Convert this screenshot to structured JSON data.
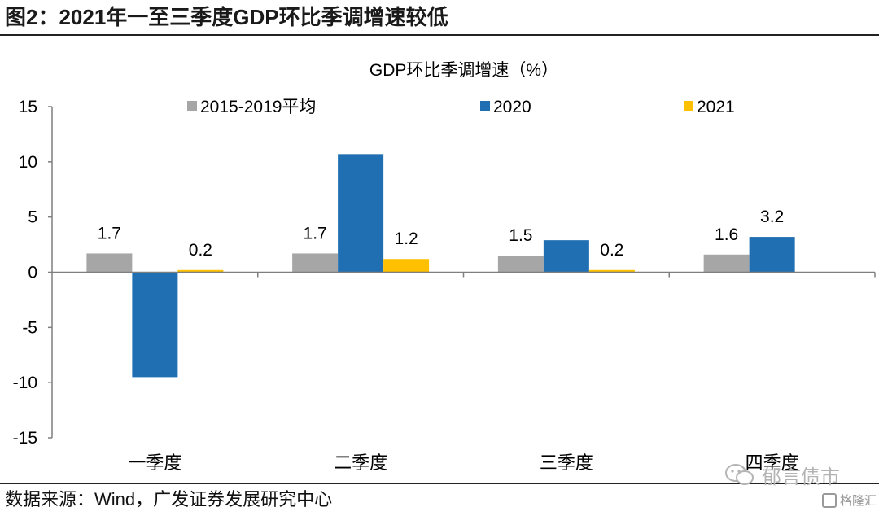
{
  "figure": {
    "title": "图2：2021年一至三季度GDP环比季调增速较低",
    "source": "数据来源：Wind，广发证券发展研究中心",
    "watermark": "郁言债市",
    "watermark2": "格隆汇"
  },
  "chart_data": {
    "type": "bar",
    "title": "GDP环比季调增速（%）",
    "xlabel": "",
    "ylabel": "",
    "categories": [
      "一季度",
      "二季度",
      "三季度",
      "四季度"
    ],
    "ylim": [
      -15,
      15
    ],
    "yticks": [
      15,
      10,
      5,
      0,
      -5,
      -10,
      -15
    ],
    "legend_position": "top",
    "grid": false,
    "series": [
      {
        "name": "2015-2019平均",
        "color": "#a6a6a6",
        "values": [
          1.7,
          1.7,
          1.5,
          1.6
        ],
        "labels": [
          "1.7",
          "1.7",
          "1.5",
          "1.6"
        ]
      },
      {
        "name": "2020",
        "color": "#1f6fb2",
        "values": [
          -9.5,
          10.7,
          2.9,
          3.2
        ],
        "labels": [
          "",
          "",
          "",
          "3.2"
        ]
      },
      {
        "name": "2021",
        "color": "#ffc000",
        "values": [
          0.2,
          1.2,
          0.2,
          null
        ],
        "labels": [
          "0.2",
          "1.2",
          "0.2",
          ""
        ]
      }
    ]
  }
}
